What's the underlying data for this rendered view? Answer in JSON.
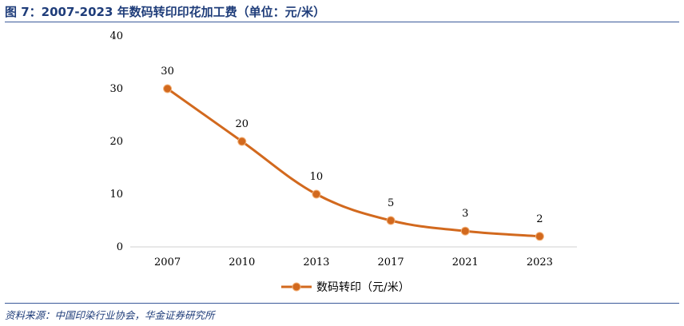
{
  "figure": {
    "title": "图 7：2007-2023 年数码转印印花加工费（单位：元/米）",
    "source": "资料来源：中国印染行业协会，华金证券研究所"
  },
  "chart_data": {
    "type": "line",
    "categories": [
      "2007",
      "2010",
      "2013",
      "2017",
      "2021",
      "2023"
    ],
    "series": [
      {
        "name": "数码转印（元/米）",
        "values": [
          30,
          20,
          10,
          5,
          3,
          2
        ],
        "color": "#d2691e"
      }
    ],
    "yticks": [
      "0",
      "10",
      "20",
      "30",
      "40"
    ],
    "ylim": [
      0,
      40
    ],
    "grid": false,
    "legend": "bottom-center",
    "line_color": "#d2691e"
  }
}
